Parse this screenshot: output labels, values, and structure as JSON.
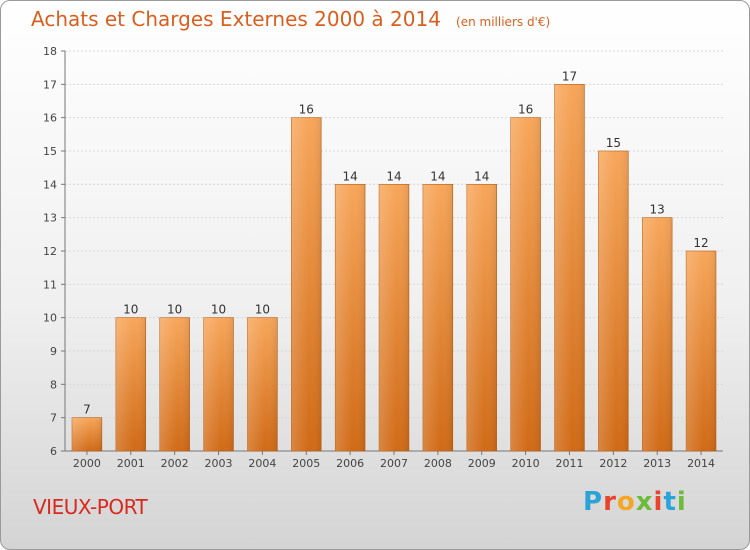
{
  "header": {
    "title": "Achats et Charges Externes 2000 à 2014",
    "subtitle": "(en milliers d'€)"
  },
  "footer": {
    "place": "VIEUX-PORT",
    "logo_text": "Proxiti",
    "logo_colors": [
      "#2aa3d8",
      "#e8442d",
      "#f5a623",
      "#6cbb3c",
      "#e8442d",
      "#2aa3d8",
      "#6cbb3c"
    ]
  },
  "chart_data": {
    "type": "bar",
    "title": "Achats et Charges Externes 2000 à 2014",
    "subtitle": "(en milliers d'€)",
    "categories": [
      "2000",
      "2001",
      "2002",
      "2003",
      "2004",
      "2005",
      "2006",
      "2007",
      "2008",
      "2009",
      "2010",
      "2011",
      "2012",
      "2013",
      "2014"
    ],
    "values": [
      7,
      10,
      10,
      10,
      10,
      16,
      14,
      14,
      14,
      14,
      16,
      17,
      15,
      13,
      12
    ],
    "xlabel": "",
    "ylabel": "",
    "ylim": [
      6,
      18
    ],
    "yticks": [
      6,
      7,
      8,
      9,
      10,
      11,
      12,
      13,
      14,
      15,
      16,
      17,
      18
    ],
    "grid": true,
    "bar_color_top": "#f7a65a",
    "bar_color_bottom": "#d06a16"
  }
}
